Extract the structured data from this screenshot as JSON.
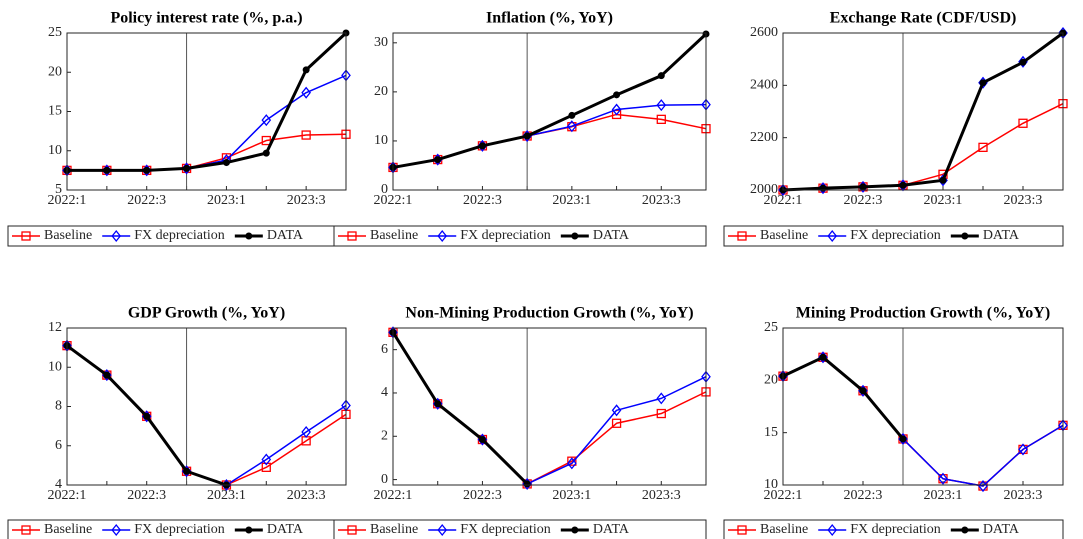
{
  "chart_data": [
    {
      "type": "line",
      "title": "Policy interest rate (%, p.a.)",
      "categories": [
        "2022:1",
        null,
        "2022:3",
        null,
        "2023:1",
        null,
        "2023:3",
        null
      ],
      "ylim": [
        5,
        25
      ],
      "yticks": [
        5,
        10,
        15,
        20,
        25
      ],
      "vline_index": 3,
      "series": [
        {
          "name": "Baseline",
          "color": "#ff0000",
          "marker": "square",
          "values": [
            7.5,
            7.5,
            7.5,
            7.75,
            9.1,
            11.3,
            12.0,
            12.1
          ]
        },
        {
          "name": "FX depreciation",
          "color": "#0000ff",
          "marker": "diamond",
          "values": [
            7.5,
            7.5,
            7.5,
            7.75,
            8.8,
            13.9,
            17.4,
            19.6
          ]
        },
        {
          "name": "DATA",
          "color": "#000000",
          "marker": "circle",
          "values": [
            7.5,
            7.5,
            7.5,
            7.75,
            8.5,
            9.7,
            20.3,
            25
          ]
        }
      ]
    },
    {
      "type": "line",
      "title": "Inflation (%, YoY)",
      "categories": [
        "2022:1",
        null,
        "2022:3",
        null,
        "2023:1",
        null,
        "2023:3",
        null
      ],
      "ylim": [
        0,
        32
      ],
      "yticks": [
        0,
        10,
        20,
        30
      ],
      "vline_index": 3,
      "series": [
        {
          "name": "Baseline",
          "color": "#ff0000",
          "marker": "square",
          "values": [
            4.6,
            6.2,
            9.0,
            11.0,
            12.9,
            15.4,
            14.4,
            12.5
          ]
        },
        {
          "name": "FX depreciation",
          "color": "#0000ff",
          "marker": "diamond",
          "values": [
            4.6,
            6.2,
            9.0,
            11.0,
            13.0,
            16.4,
            17.3,
            17.4
          ]
        },
        {
          "name": "DATA",
          "color": "#000000",
          "marker": "circle",
          "values": [
            4.6,
            6.2,
            9.0,
            11.0,
            15.2,
            19.4,
            23.3,
            31.8
          ]
        }
      ]
    },
    {
      "type": "line",
      "title": "Exchange Rate (CDF/USD)",
      "categories": [
        "2022:1",
        null,
        "2022:3",
        null,
        "2023:1",
        null,
        "2023:3",
        null
      ],
      "ylim": [
        2000,
        2600
      ],
      "yticks": [
        2000,
        2200,
        2400,
        2600
      ],
      "vline_index": 3,
      "series": [
        {
          "name": "Baseline",
          "color": "#ff0000",
          "marker": "square",
          "values": [
            2000,
            2007,
            2012,
            2018,
            2060,
            2163,
            2255,
            2330
          ]
        },
        {
          "name": "FX depreciation",
          "color": "#0000ff",
          "marker": "diamond",
          "values": [
            2000,
            2007,
            2012,
            2018,
            2037,
            2410,
            2490,
            2600
          ]
        },
        {
          "name": "DATA",
          "color": "#000000",
          "marker": "circle",
          "values": [
            2000,
            2007,
            2012,
            2018,
            2037,
            2410,
            2488,
            2600
          ]
        }
      ]
    },
    {
      "type": "line",
      "title": "GDP Growth (%, YoY)",
      "categories": [
        "2022:1",
        null,
        "2022:3",
        null,
        "2023:1",
        null,
        "2023:3",
        null
      ],
      "ylim": [
        4,
        12
      ],
      "yticks": [
        4,
        6,
        8,
        10,
        12
      ],
      "vline_index": 3,
      "series": [
        {
          "name": "Baseline",
          "color": "#ff0000",
          "marker": "square",
          "values": [
            11.1,
            9.6,
            7.5,
            4.7,
            4.0,
            4.9,
            6.25,
            7.6
          ]
        },
        {
          "name": "FX depreciation",
          "color": "#0000ff",
          "marker": "diamond",
          "values": [
            11.1,
            9.6,
            7.5,
            4.7,
            4.0,
            5.3,
            6.7,
            8.05
          ]
        },
        {
          "name": "DATA",
          "color": "#000000",
          "marker": "circle",
          "values": [
            11.1,
            9.6,
            7.5,
            4.7,
            4.0,
            null,
            null,
            null
          ]
        }
      ]
    },
    {
      "type": "line",
      "title": "Non-Mining Production Growth (%, YoY)",
      "categories": [
        "2022:1",
        null,
        "2022:3",
        null,
        "2023:1",
        null,
        "2023:3",
        null
      ],
      "ylim": [
        -0.25,
        7
      ],
      "yticks": [
        0,
        2,
        4,
        6
      ],
      "vline_index": 3,
      "series": [
        {
          "name": "Baseline",
          "color": "#ff0000",
          "marker": "square",
          "values": [
            6.8,
            3.5,
            1.85,
            -0.2,
            0.85,
            2.6,
            3.05,
            4.05
          ]
        },
        {
          "name": "FX depreciation",
          "color": "#0000ff",
          "marker": "diamond",
          "values": [
            6.8,
            3.5,
            1.85,
            -0.2,
            0.75,
            3.2,
            3.75,
            4.75
          ]
        },
        {
          "name": "DATA",
          "color": "#000000",
          "marker": "circle",
          "values": [
            6.8,
            3.5,
            1.85,
            -0.2,
            null,
            null,
            null,
            null
          ]
        }
      ]
    },
    {
      "type": "line",
      "title": "Mining Production Growth (%, YoY)",
      "categories": [
        "2022:1",
        null,
        "2022:3",
        null,
        "2023:1",
        null,
        "2023:3",
        null
      ],
      "ylim": [
        10,
        25
      ],
      "yticks": [
        10,
        15,
        20,
        25
      ],
      "vline_index": 3,
      "series": [
        {
          "name": "Baseline",
          "color": "#ff0000",
          "marker": "square",
          "values": [
            20.4,
            22.2,
            19.0,
            14.4,
            10.6,
            9.9,
            13.4,
            15.7
          ]
        },
        {
          "name": "FX depreciation",
          "color": "#0000ff",
          "marker": "diamond",
          "values": [
            20.4,
            22.2,
            19.0,
            14.4,
            10.6,
            9.9,
            13.4,
            15.7
          ]
        },
        {
          "name": "DATA",
          "color": "#000000",
          "marker": "circle",
          "values": [
            20.4,
            22.2,
            19.0,
            14.4,
            null,
            null,
            null,
            null
          ]
        }
      ]
    }
  ]
}
